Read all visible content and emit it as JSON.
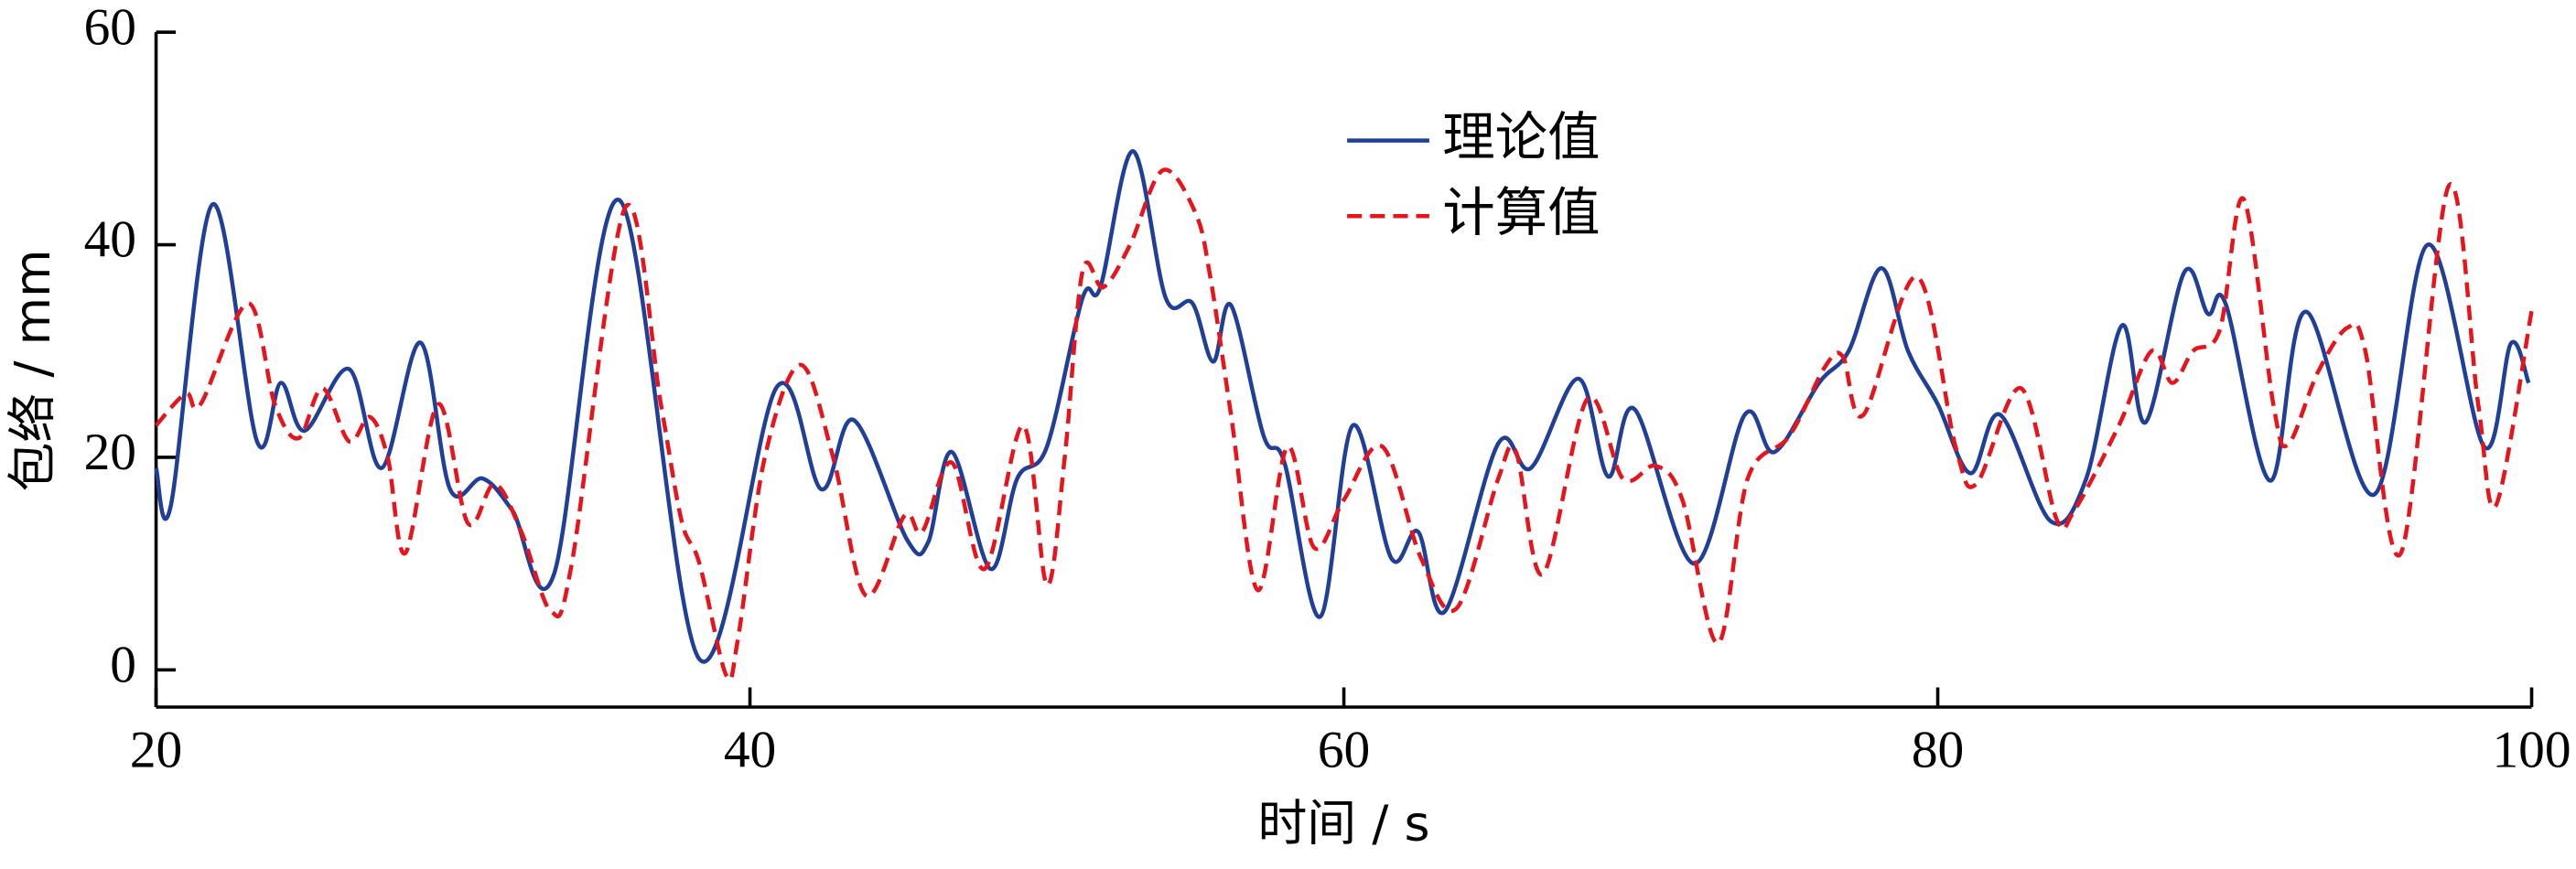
{
  "chart_data": {
    "type": "line",
    "xlabel": "时间 / s",
    "ylabel": "包络 / mm",
    "xlim": [
      20,
      100
    ],
    "ylim": [
      -3.5,
      60
    ],
    "xticks": [
      20,
      40,
      60,
      80,
      100
    ],
    "yticks": [
      0,
      20,
      40,
      60
    ],
    "legend_loc": "upper center",
    "series": [
      {
        "name": "理论值",
        "color": "#1f3f99",
        "style": "solid",
        "x": [
          20,
          20.5,
          21.9,
          23.4,
          24.2,
          25,
          26.5,
          27.6,
          28.9,
          29.9,
          31,
          32,
          33.4,
          35.6,
          38.3,
          40.9,
          42.4,
          43.5,
          45.3,
          46,
          46.8,
          48.1,
          49,
          50,
          51.2,
          51.8,
          52.9,
          54,
          54.9,
          55.6,
          56.2,
          57.3,
          58,
          59.2,
          60.3,
          61.6,
          62.5,
          63.4,
          65.2,
          66.3,
          67.9,
          68.9,
          69.8,
          71.8,
          73.5,
          74.5,
          76,
          77,
          78.1,
          79,
          80,
          81.1,
          82.1,
          83.8,
          85,
          86.2,
          87,
          88.3,
          89.1,
          89.7,
          91.2,
          92.4,
          94.7,
          96.5,
          98.4,
          99.3,
          99.9
        ],
        "values": [
          19,
          15.5,
          43.8,
          21.5,
          27,
          22.5,
          28.3,
          19,
          30.8,
          17,
          18,
          15,
          9,
          44.2,
          1,
          26.6,
          17,
          23.5,
          12.2,
          12,
          20.5,
          9.5,
          18,
          21,
          35,
          36,
          48.8,
          35,
          34.5,
          29,
          34.3,
          22,
          19.5,
          5,
          23,
          10.5,
          13,
          5.5,
          21.3,
          19,
          27.4,
          18.2,
          24.5,
          10,
          24,
          20.5,
          27,
          30,
          37.8,
          30,
          25,
          18.5,
          24,
          14,
          18,
          32.4,
          23.3,
          37.4,
          33.5,
          34.4,
          17.8,
          33.7,
          16.5,
          40,
          21,
          30.7,
          27
        ]
      },
      {
        "name": "计算值",
        "color": "#e8141b",
        "style": "dashed",
        "x": [
          20,
          21,
          21.5,
          23.1,
          24,
          24.8,
          25.6,
          26.5,
          27.2,
          27.8,
          28.4,
          29.5,
          30.5,
          31.4,
          32.3,
          33.3,
          34,
          35.8,
          37,
          37.7,
          38.3,
          39.2,
          39.6,
          40.5,
          41.7,
          42.8,
          43.9,
          45.2,
          45.8,
          46.8,
          47.9,
          49.2,
          50,
          50.6,
          51.2,
          51.9,
          52.8,
          53.9,
          55,
          55.5,
          56.2,
          57.1,
          58.1,
          59,
          60,
          61.3,
          62.6,
          63.8,
          65.2,
          65.8,
          66.7,
          68.2,
          69.4,
          70.5,
          71.4,
          72.6,
          73.6,
          75,
          76.2,
          76.8,
          77.5,
          79.3,
          80.6,
          81.3,
          82.8,
          84,
          84.6,
          86.1,
          87.2,
          87.9,
          88.6,
          89.5,
          90.3,
          91.3,
          91.8,
          92.8,
          93.8,
          94.4,
          95.6,
          97.2,
          98.2,
          98.8,
          100
        ],
        "values": [
          23,
          26,
          25,
          34.5,
          25,
          21.8,
          26.5,
          21.5,
          23.8,
          20,
          11,
          25,
          13.8,
          17.5,
          13,
          5.5,
          10,
          43.5,
          25,
          14,
          10,
          -0.5,
          3,
          20,
          28.7,
          20,
          7,
          14.5,
          13,
          19.5,
          9.5,
          23,
          8,
          20,
          37.5,
          36,
          40,
          47,
          43,
          37,
          24,
          7.5,
          21,
          11.5,
          16,
          21,
          10.5,
          5.8,
          18,
          20.5,
          9,
          25.5,
          18,
          19.2,
          16,
          2.5,
          18,
          22,
          28.5,
          29.5,
          24,
          37,
          21,
          17.5,
          26.5,
          14.2,
          15,
          23,
          30,
          27,
          30,
          32,
          44.3,
          25,
          21.2,
          28,
          32.2,
          30,
          11,
          45.5,
          25,
          15.5,
          33.8
        ]
      }
    ]
  }
}
